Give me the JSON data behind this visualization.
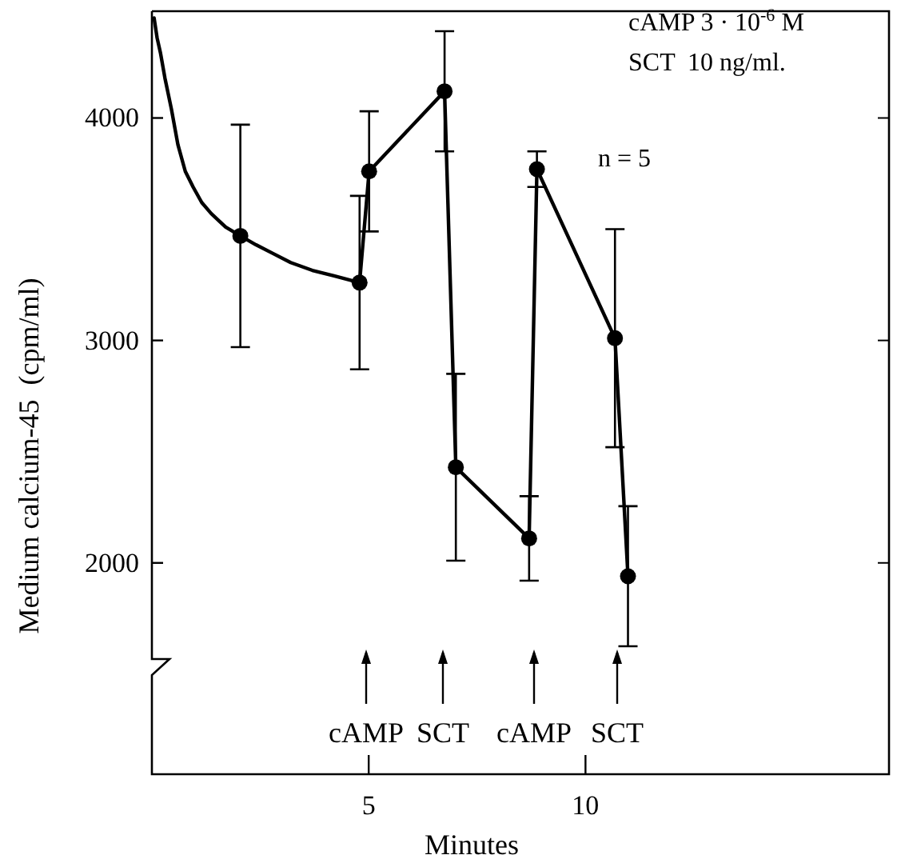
{
  "chart_data": {
    "type": "line",
    "xlabel": "Minutes",
    "ylabel": "Medium calcium-45  (cpm/ml)",
    "xlim": [
      0,
      17
    ],
    "xticks": [
      5,
      10
    ],
    "ylim": [
      1050,
      4480
    ],
    "yticks": [
      2000,
      3000,
      4000
    ],
    "grid": false,
    "marker": "circle",
    "line_style": "solid",
    "series": [
      {
        "type": "line",
        "marker": "none",
        "color": "#000000",
        "x": [
          0.05,
          0.12,
          0.2,
          0.3,
          0.45,
          0.6,
          0.77,
          0.95,
          1.15,
          1.37,
          1.7,
          2.04,
          2.4,
          2.8,
          3.2,
          3.7,
          4.2,
          4.79
        ],
        "values": [
          4450,
          4360,
          4290,
          4180,
          4040,
          3880,
          3760,
          3690,
          3620,
          3570,
          3510,
          3470,
          3430,
          3390,
          3350,
          3315,
          3290,
          3260
        ]
      },
      {
        "type": "scatter",
        "color": "#000000",
        "x": [
          2.04
        ],
        "values": [
          3470
        ],
        "errors": [
          500
        ]
      },
      {
        "color": "#000000",
        "x": [
          4.79,
          5.01,
          6.75,
          7.01,
          8.7,
          8.88,
          10.68,
          10.98
        ],
        "values": [
          3260,
          3760,
          4120,
          2430,
          2110,
          3770,
          3010,
          1940
        ],
        "errors": [
          390,
          270,
          270,
          420,
          190,
          80,
          490,
          315
        ]
      }
    ],
    "annotations": [
      "cAMP 3 · 10$^{-6}$ M",
      "SCT  10 ng/ml.",
      "n = 5",
      "cAMP",
      "SCT",
      "cAMP",
      "SCT"
    ]
  }
}
